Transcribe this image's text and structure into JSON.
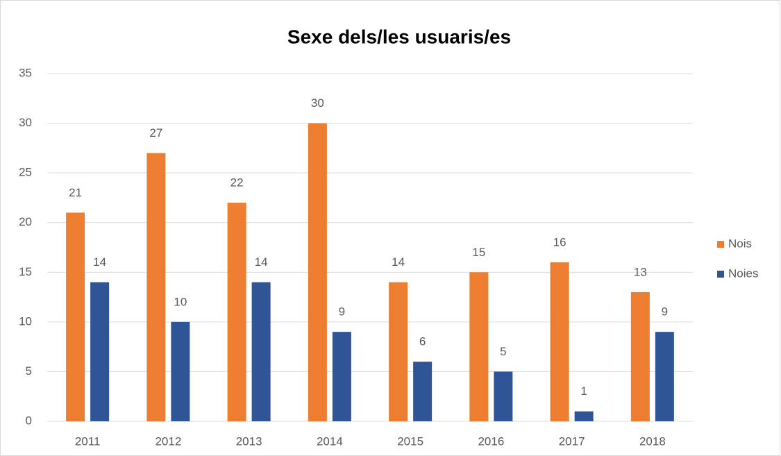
{
  "chart_data": {
    "type": "bar",
    "title": "Sexe dels/les usuaris/es",
    "categories": [
      "2011",
      "2012",
      "2013",
      "2014",
      "2015",
      "2016",
      "2017",
      "2018"
    ],
    "series": [
      {
        "name": "Nois",
        "color": "#ed7d31",
        "values": [
          21,
          27,
          22,
          30,
          14,
          15,
          16,
          13
        ]
      },
      {
        "name": "Noies",
        "color": "#2f5597",
        "values": [
          14,
          10,
          14,
          9,
          6,
          5,
          1,
          9
        ]
      }
    ],
    "ylim": [
      0,
      35
    ],
    "yticks": [
      0,
      5,
      10,
      15,
      20,
      25,
      30,
      35
    ],
    "grid": true,
    "legend": "right"
  }
}
